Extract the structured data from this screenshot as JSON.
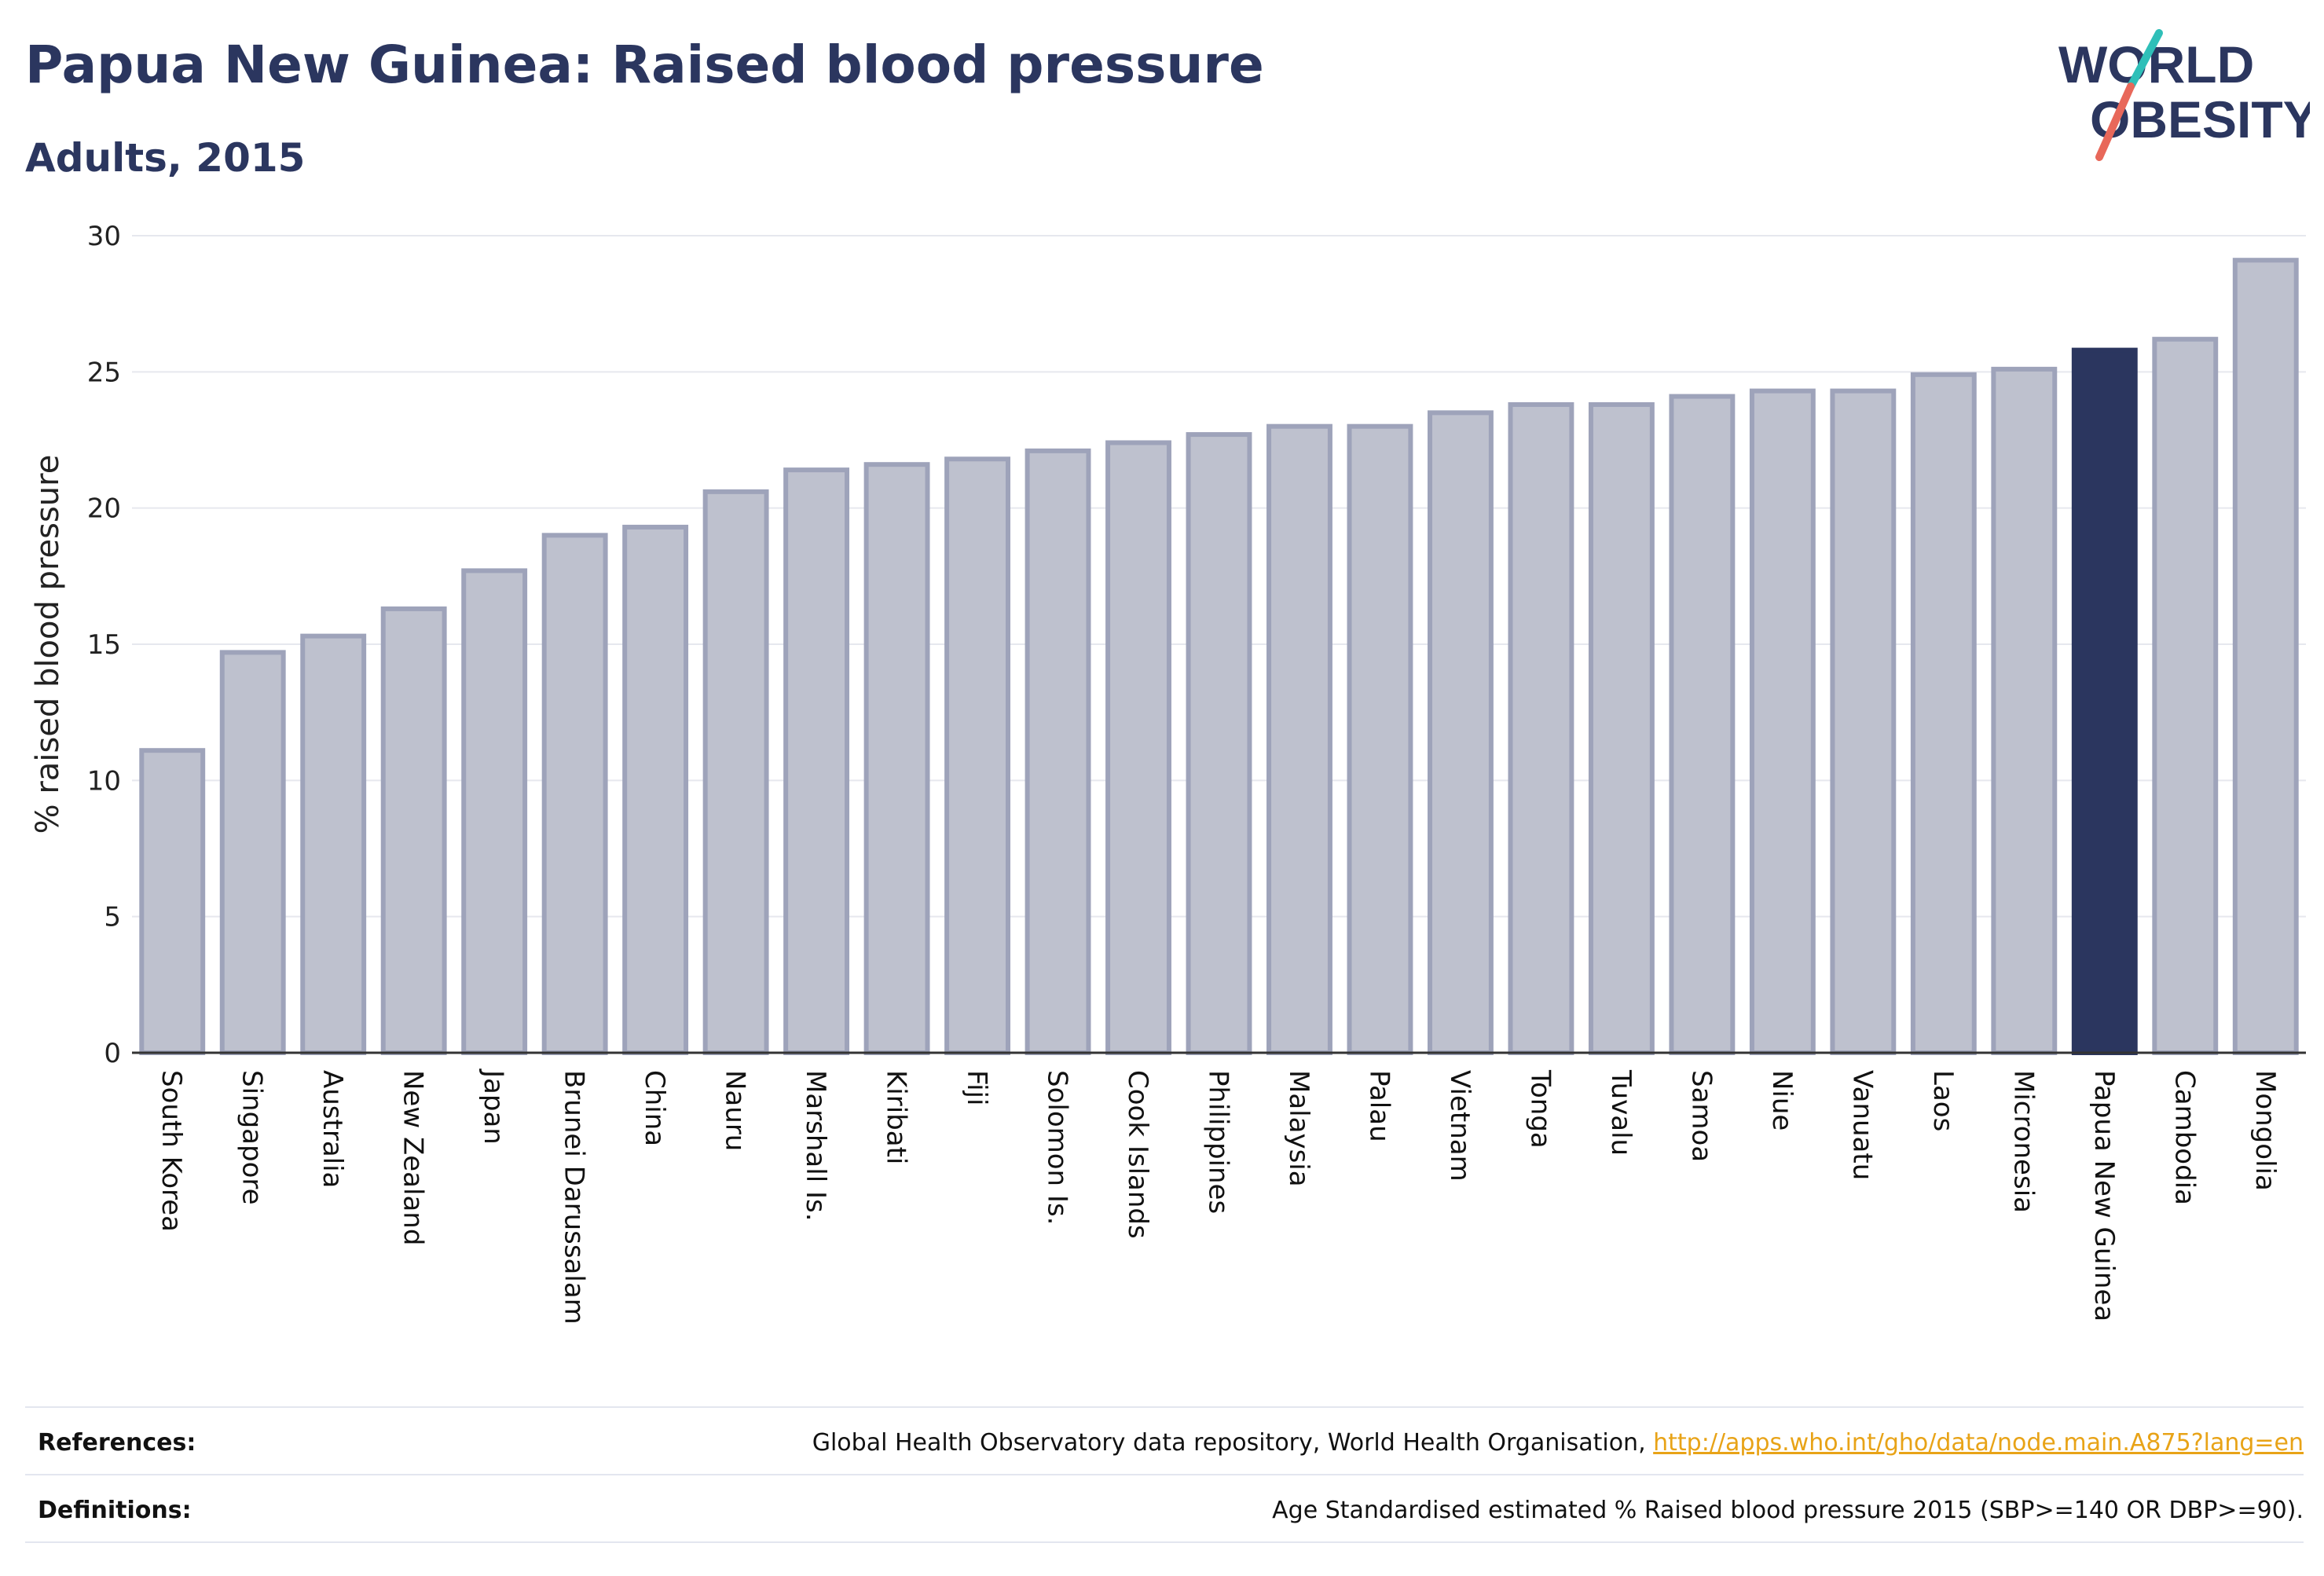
{
  "title": "Papua New Guinea: Raised blood pressure",
  "subtitle": "Adults, 2015",
  "logo": {
    "line1": "WORLD",
    "line2": "OBESITY",
    "text_color": "#2b365f",
    "accent1": "#2fbfb8",
    "accent2": "#e8685a"
  },
  "colors": {
    "bar": "#bec1ce",
    "bar_edge": "#9ea3ba",
    "highlight": "#2b365f",
    "axis": "#333333",
    "grid": "#e6e8ee"
  },
  "chart_data": {
    "type": "bar",
    "ylabel": "% raised blood pressure",
    "xlabel": "",
    "ylim": [
      0,
      30
    ],
    "yticks": [
      0,
      5,
      10,
      15,
      20,
      25,
      30
    ],
    "grid": true,
    "highlight": "Papua New Guinea",
    "categories": [
      "South Korea",
      "Singapore",
      "Australia",
      "New Zealand",
      "Japan",
      "Brunei Darussalam",
      "China",
      "Nauru",
      "Marshall Is.",
      "Kiribati",
      "Fiji",
      "Solomon Is.",
      "Cook Islands",
      "Philippines",
      "Malaysia",
      "Palau",
      "Vietnam",
      "Tonga",
      "Tuvalu",
      "Samoa",
      "Niue",
      "Vanuatu",
      "Laos",
      "Micronesia",
      "Papua New Guinea",
      "Cambodia",
      "Mongolia"
    ],
    "values": [
      11.1,
      14.7,
      15.3,
      16.3,
      17.7,
      19.0,
      19.3,
      20.6,
      21.4,
      21.6,
      21.8,
      22.1,
      22.4,
      22.7,
      23.0,
      23.0,
      23.5,
      23.8,
      23.8,
      24.1,
      24.3,
      24.3,
      24.9,
      25.1,
      25.8,
      26.2,
      29.1
    ]
  },
  "footer": {
    "references_label": "References:",
    "references_text": "Global Health Observatory data repository, World Health Organisation, ",
    "references_link": "http://apps.who.int/gho/data/node.main.A875?lang=en",
    "definitions_label": "Definitions:",
    "definitions_text": "Age Standardised estimated % Raised blood pressure 2015 (SBP>=140 OR DBP>=90)."
  }
}
